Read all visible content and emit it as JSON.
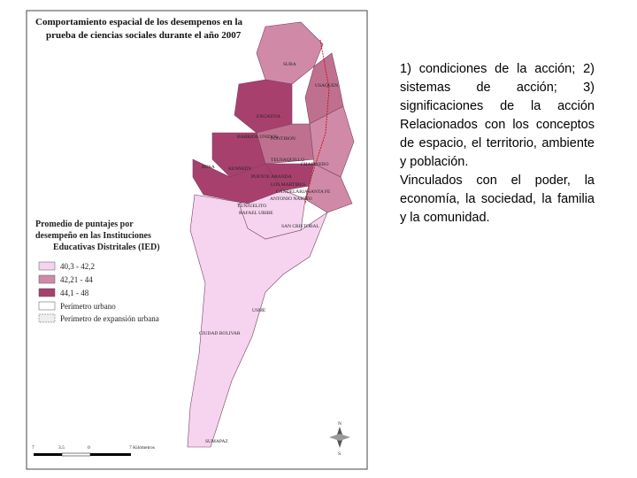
{
  "map": {
    "title": [
      "Comportamiento espacial de los desempenos en la",
      "prueba de ciencias sociales durante el año 2007"
    ],
    "localities": [
      "SUBA",
      "USAQUEN",
      "ENGATIVA",
      "BARRIOS UNIDOS",
      "FONTIBON",
      "TEUSAQUILLO",
      "CHAPINERO",
      "BOSA",
      "KENNEDY",
      "PUENTE ARANDA",
      "LOS MARTIRES",
      "CANDELARIA",
      "SANTA FE",
      "ANTONIO NARIÑO",
      "TUNJUELITO",
      "RAFAEL URIBE",
      "SAN CRISTOBAL",
      "USME",
      "CIUDAD BOLIVAR",
      "SUMAPAZ"
    ],
    "legend": {
      "title": [
        "Promedio de puntajes por",
        "desempeño en las Instituciones",
        "Educativas Distritales (IED)"
      ],
      "items": [
        "40,3 - 42,2",
        "42,21 - 44",
        "44,1 - 48",
        "Perímetro urbano",
        "Perímetro de expansión urbana"
      ]
    },
    "scale": [
      "7",
      "3.5",
      "0",
      "7 Kilómetros"
    ],
    "compass": [
      "N",
      "S"
    ]
  },
  "text": {
    "paragraphs": [
      "1) condiciones de la acción; 2) sistemas de acción; 3) significaciones de la acción Relacionados con los conceptos de espacio, el territorio, ambiente y población.",
      "Vinculados con el poder, la economía, la sociedad, la familia y la comunidad."
    ]
  }
}
